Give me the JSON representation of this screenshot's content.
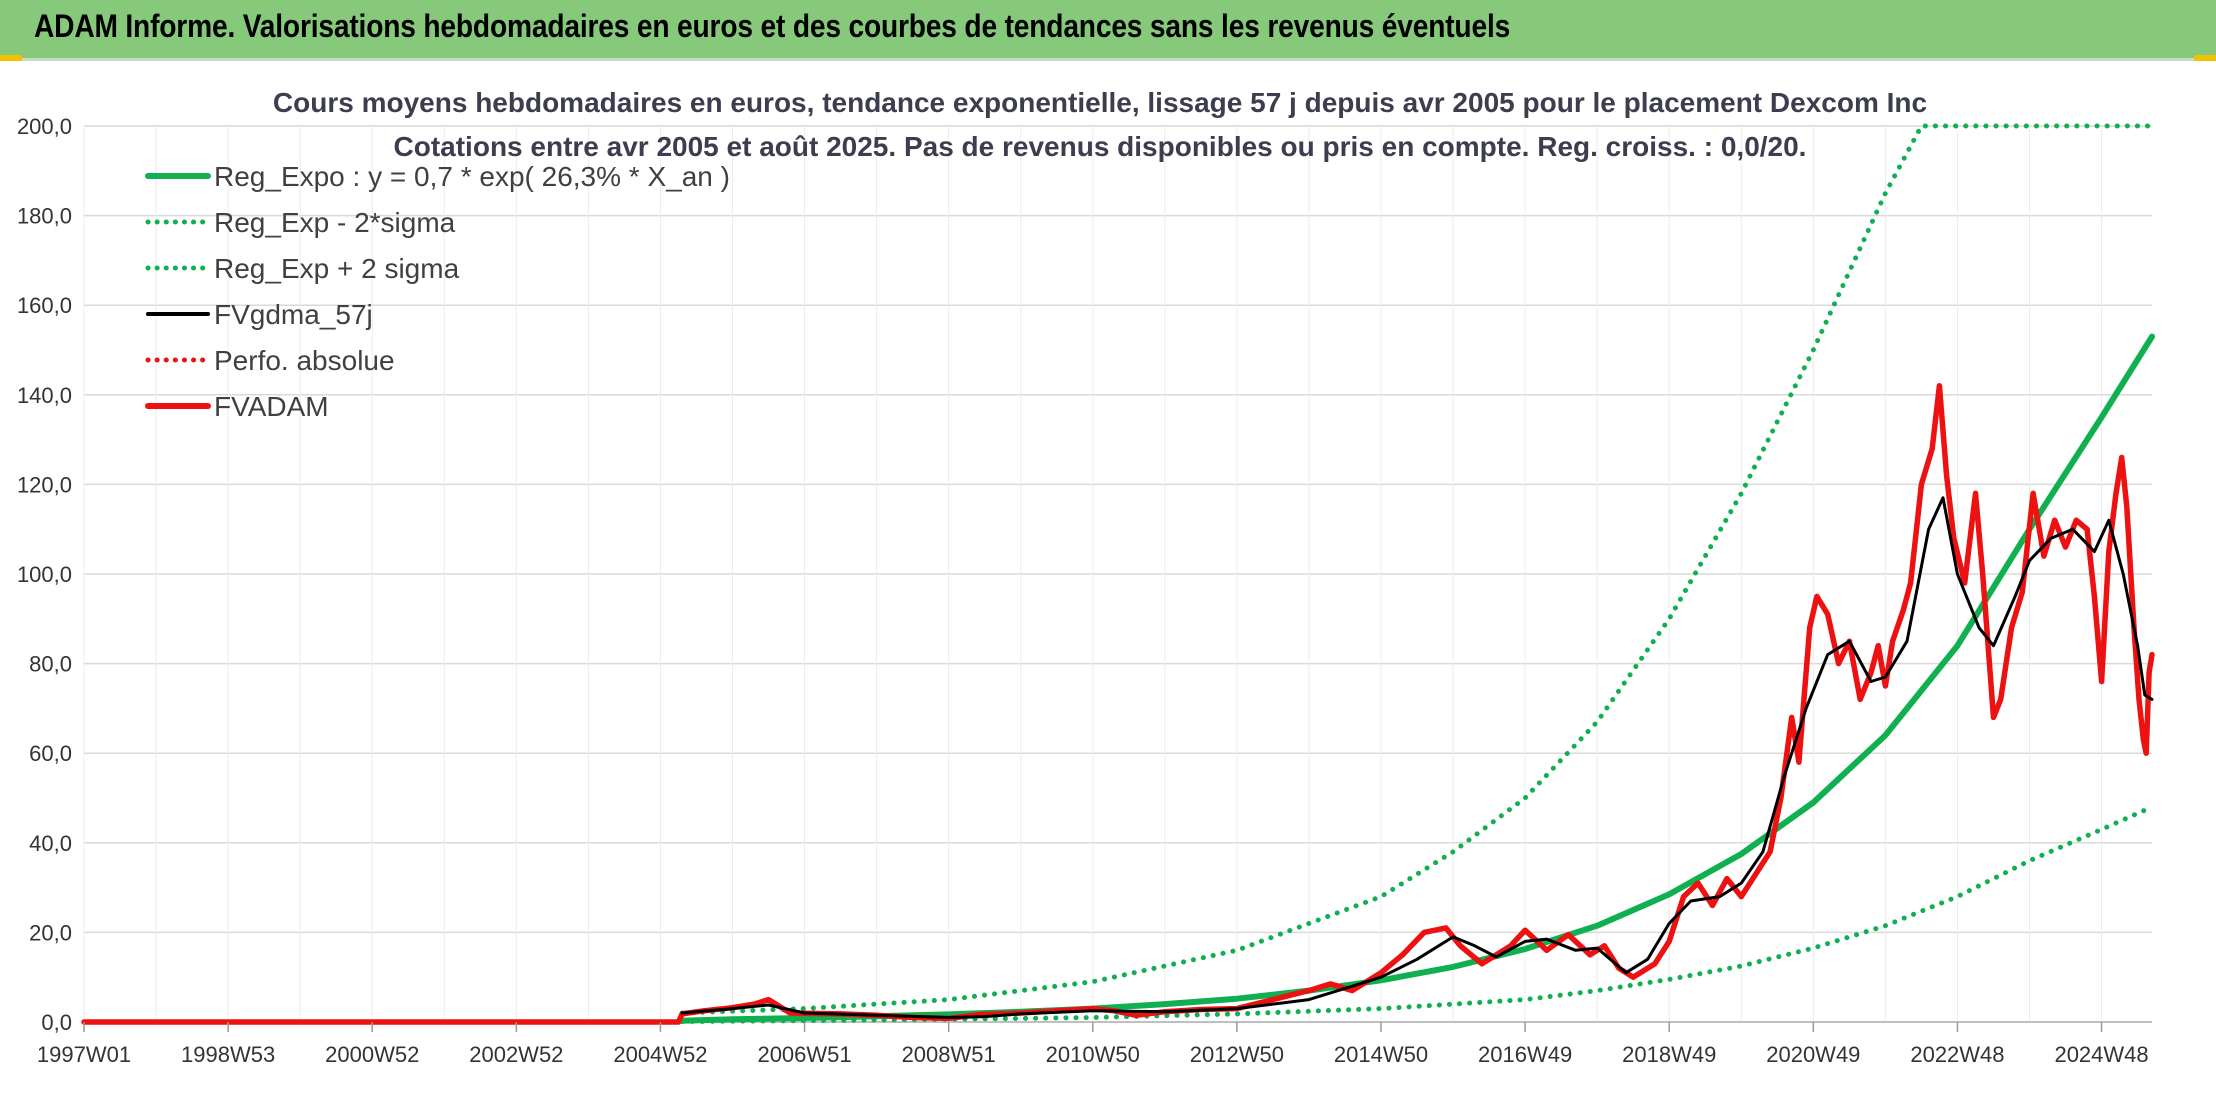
{
  "header": {
    "title": "ADAM Informe. Valorisations hebdomadaires en euros et des courbes de tendances sans les revenus éventuels"
  },
  "colors": {
    "header_bg": "#86c97a",
    "green": "#10b050",
    "red": "#ee1111",
    "black": "#000000",
    "grid": "#d9d9d9"
  },
  "chart_data": {
    "type": "line",
    "title_lines": [
      "Cours moyens hebdomadaires en euros, tendance exponentielle, lissage 57 j depuis avr 2005 pour le placement Dexcom Inc",
      "Cotations entre avr 2005 et août 2025. Pas de revenus disponibles ou pris en compte. Reg. croiss. : 0,0/20."
    ],
    "xlabel": "",
    "ylabel": "",
    "xlim": [
      1997.0,
      2025.7
    ],
    "ylim": [
      0,
      200
    ],
    "y_ticks": [
      "0,0",
      "20,0",
      "40,0",
      "60,0",
      "80,0",
      "100,0",
      "120,0",
      "140,0",
      "160,0",
      "180,0",
      "200,0"
    ],
    "x_ticks": [
      {
        "label": "1997W01",
        "x": 1997.0
      },
      {
        "label": "1998W53",
        "x": 1999.0
      },
      {
        "label": "2000W52",
        "x": 2001.0
      },
      {
        "label": "2002W52",
        "x": 2003.0
      },
      {
        "label": "2004W52",
        "x": 2005.0
      },
      {
        "label": "2006W51",
        "x": 2007.0
      },
      {
        "label": "2008W51",
        "x": 2009.0
      },
      {
        "label": "2010W50",
        "x": 2011.0
      },
      {
        "label": "2012W50",
        "x": 2013.0
      },
      {
        "label": "2014W50",
        "x": 2015.0
      },
      {
        "label": "2016W49",
        "x": 2017.0
      },
      {
        "label": "2018W49",
        "x": 2019.0
      },
      {
        "label": "2020W49",
        "x": 2021.0
      },
      {
        "label": "2022W48",
        "x": 2023.0
      },
      {
        "label": "2024W48",
        "x": 2025.0
      }
    ],
    "grid": true,
    "legend_position": "top-left",
    "series": [
      {
        "name": "Reg_Expo : y = 0,7 * exp( 26,3% *  X_an )",
        "style": "solid",
        "color": "#10b050",
        "points": [
          [
            2005.3,
            0.3
          ],
          [
            2006,
            0.6
          ],
          [
            2007,
            0.9
          ],
          [
            2008,
            1.3
          ],
          [
            2009,
            1.7
          ],
          [
            2010,
            2.3
          ],
          [
            2011,
            3.0
          ],
          [
            2012,
            4.0
          ],
          [
            2013,
            5.2
          ],
          [
            2014,
            7.0
          ],
          [
            2015,
            9.3
          ],
          [
            2016,
            12.3
          ],
          [
            2017,
            16.3
          ],
          [
            2018,
            21.5
          ],
          [
            2019,
            28.5
          ],
          [
            2020,
            37.5
          ],
          [
            2021,
            49.0
          ],
          [
            2022,
            64.0
          ],
          [
            2023,
            84.0
          ],
          [
            2024,
            110.0
          ],
          [
            2025,
            135.0
          ],
          [
            2025.7,
            153.0
          ]
        ]
      },
      {
        "name": "Reg_Exp - 2*sigma",
        "style": "dotted",
        "color": "#10b050",
        "points": [
          [
            2005.3,
            0.1
          ],
          [
            2007,
            0.3
          ],
          [
            2009,
            0.6
          ],
          [
            2011,
            1.0
          ],
          [
            2013,
            1.8
          ],
          [
            2015,
            3.0
          ],
          [
            2017,
            5.0
          ],
          [
            2018,
            7.0
          ],
          [
            2019,
            9.5
          ],
          [
            2020,
            12.5
          ],
          [
            2021,
            16.5
          ],
          [
            2022,
            21.5
          ],
          [
            2023,
            28.0
          ],
          [
            2024,
            36.0
          ],
          [
            2025,
            43.0
          ],
          [
            2025.7,
            48.0
          ]
        ]
      },
      {
        "name": "Reg_Exp + 2 sigma",
        "style": "dotted",
        "color": "#10b050",
        "points": [
          [
            2005.3,
            2.0
          ],
          [
            2007,
            3.0
          ],
          [
            2009,
            5.0
          ],
          [
            2011,
            9.0
          ],
          [
            2013,
            16.0
          ],
          [
            2015,
            28.0
          ],
          [
            2016,
            38.0
          ],
          [
            2017,
            50.0
          ],
          [
            2018,
            67.0
          ],
          [
            2019,
            90.0
          ],
          [
            2020,
            118.0
          ],
          [
            2021,
            150.0
          ],
          [
            2022,
            185.0
          ],
          [
            2022.5,
            200.0
          ],
          [
            2025.7,
            200.0
          ]
        ]
      },
      {
        "name": "FVgdma_57j",
        "style": "solid",
        "color": "#000000",
        "points": [
          [
            2005.3,
            2.0
          ],
          [
            2006,
            3.0
          ],
          [
            2006.5,
            3.8
          ],
          [
            2007,
            2.0
          ],
          [
            2008,
            1.5
          ],
          [
            2009,
            1.0
          ],
          [
            2009.5,
            1.2
          ],
          [
            2010,
            1.8
          ],
          [
            2011,
            2.5
          ],
          [
            2012,
            2.3
          ],
          [
            2013,
            3.0
          ],
          [
            2014,
            5.0
          ],
          [
            2014.5,
            7.5
          ],
          [
            2015,
            10.0
          ],
          [
            2015.5,
            14.0
          ],
          [
            2016,
            19.0
          ],
          [
            2016.3,
            17.0
          ],
          [
            2016.6,
            14.5
          ],
          [
            2017,
            18.0
          ],
          [
            2017.3,
            18.5
          ],
          [
            2017.7,
            16.0
          ],
          [
            2018,
            16.5
          ],
          [
            2018.4,
            11.0
          ],
          [
            2018.7,
            14.0
          ],
          [
            2019,
            22.0
          ],
          [
            2019.3,
            27.0
          ],
          [
            2019.7,
            28.0
          ],
          [
            2020,
            31.0
          ],
          [
            2020.3,
            38.0
          ],
          [
            2020.6,
            55.0
          ],
          [
            2020.9,
            70.0
          ],
          [
            2021.2,
            82.0
          ],
          [
            2021.5,
            85.0
          ],
          [
            2021.8,
            76.0
          ],
          [
            2022,
            77.0
          ],
          [
            2022.3,
            85.0
          ],
          [
            2022.6,
            110.0
          ],
          [
            2022.8,
            117.0
          ],
          [
            2023.0,
            100.0
          ],
          [
            2023.3,
            88.0
          ],
          [
            2023.5,
            84.0
          ],
          [
            2023.8,
            95.0
          ],
          [
            2024.0,
            103.0
          ],
          [
            2024.3,
            108.0
          ],
          [
            2024.6,
            110.0
          ],
          [
            2024.9,
            105.0
          ],
          [
            2025.1,
            112.0
          ],
          [
            2025.3,
            100.0
          ],
          [
            2025.5,
            84.0
          ],
          [
            2025.6,
            73.0
          ],
          [
            2025.7,
            72.0
          ]
        ]
      },
      {
        "name": "Perfo. absolue",
        "style": "dotted",
        "color": "#ee1111",
        "points": []
      },
      {
        "name": "FVADAM",
        "style": "solid",
        "color": "#ee1111",
        "points": [
          [
            1997.0,
            0.0
          ],
          [
            2005.25,
            0.0
          ],
          [
            2005.3,
            1.8
          ],
          [
            2005.6,
            2.5
          ],
          [
            2006,
            3.2
          ],
          [
            2006.3,
            4.0
          ],
          [
            2006.5,
            5.0
          ],
          [
            2006.8,
            2.0
          ],
          [
            2007.5,
            1.8
          ],
          [
            2008,
            1.5
          ],
          [
            2008.5,
            1.0
          ],
          [
            2009,
            0.8
          ],
          [
            2009.4,
            1.6
          ],
          [
            2010,
            2.0
          ],
          [
            2010.5,
            2.5
          ],
          [
            2011,
            3.0
          ],
          [
            2011.3,
            2.5
          ],
          [
            2011.6,
            1.5
          ],
          [
            2012,
            2.3
          ],
          [
            2012.5,
            2.8
          ],
          [
            2013,
            3.0
          ],
          [
            2013.5,
            5.0
          ],
          [
            2014,
            7.0
          ],
          [
            2014.3,
            8.5
          ],
          [
            2014.6,
            7.0
          ],
          [
            2015,
            11.0
          ],
          [
            2015.3,
            15.0
          ],
          [
            2015.6,
            20.0
          ],
          [
            2015.9,
            21.0
          ],
          [
            2016.1,
            17.0
          ],
          [
            2016.4,
            13.0
          ],
          [
            2016.8,
            17.0
          ],
          [
            2017.0,
            20.5
          ],
          [
            2017.3,
            16.0
          ],
          [
            2017.6,
            19.5
          ],
          [
            2017.9,
            15.0
          ],
          [
            2018.1,
            17.0
          ],
          [
            2018.3,
            12.0
          ],
          [
            2018.5,
            10.0
          ],
          [
            2018.8,
            13.0
          ],
          [
            2019.0,
            18.0
          ],
          [
            2019.2,
            28.0
          ],
          [
            2019.4,
            31.0
          ],
          [
            2019.6,
            26.0
          ],
          [
            2019.8,
            32.0
          ],
          [
            2020.0,
            28.0
          ],
          [
            2020.2,
            33.0
          ],
          [
            2020.4,
            38.0
          ],
          [
            2020.55,
            50.0
          ],
          [
            2020.7,
            68.0
          ],
          [
            2020.8,
            58.0
          ],
          [
            2020.95,
            88.0
          ],
          [
            2021.05,
            95.0
          ],
          [
            2021.2,
            91.0
          ],
          [
            2021.35,
            80.0
          ],
          [
            2021.5,
            85.0
          ],
          [
            2021.65,
            72.0
          ],
          [
            2021.8,
            78.0
          ],
          [
            2021.9,
            84.0
          ],
          [
            2022.0,
            75.0
          ],
          [
            2022.1,
            85.0
          ],
          [
            2022.25,
            92.0
          ],
          [
            2022.35,
            98.0
          ],
          [
            2022.5,
            120.0
          ],
          [
            2022.65,
            128.0
          ],
          [
            2022.75,
            142.0
          ],
          [
            2022.85,
            122.0
          ],
          [
            2022.95,
            108.0
          ],
          [
            2023.1,
            98.0
          ],
          [
            2023.25,
            118.0
          ],
          [
            2023.35,
            100.0
          ],
          [
            2023.5,
            68.0
          ],
          [
            2023.6,
            72.0
          ],
          [
            2023.75,
            88.0
          ],
          [
            2023.9,
            96.0
          ],
          [
            2024.05,
            118.0
          ],
          [
            2024.2,
            104.0
          ],
          [
            2024.35,
            112.0
          ],
          [
            2024.5,
            106.0
          ],
          [
            2024.65,
            112.0
          ],
          [
            2024.8,
            110.0
          ],
          [
            2024.9,
            95.0
          ],
          [
            2025.0,
            76.0
          ],
          [
            2025.1,
            105.0
          ],
          [
            2025.2,
            118.0
          ],
          [
            2025.28,
            126.0
          ],
          [
            2025.35,
            115.0
          ],
          [
            2025.45,
            88.0
          ],
          [
            2025.52,
            72.0
          ],
          [
            2025.58,
            63.0
          ],
          [
            2025.62,
            60.0
          ],
          [
            2025.66,
            78.0
          ],
          [
            2025.7,
            82.0
          ]
        ]
      }
    ]
  }
}
